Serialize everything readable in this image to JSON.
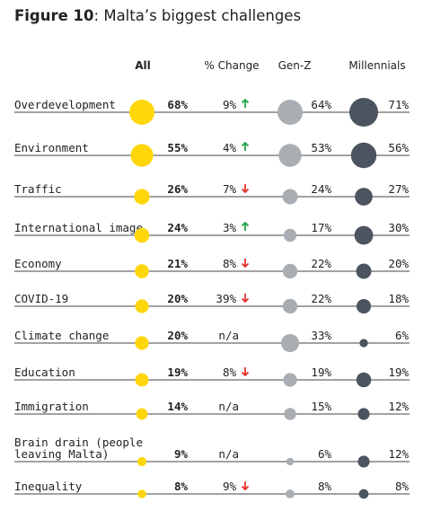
{
  "title": {
    "prefix": "Figure 10",
    "rest": ": Malta’s biggest challenges"
  },
  "chart_data": {
    "type": "table",
    "columns": [
      "All",
      "% Change",
      "Gen-Z",
      "Millennials"
    ],
    "series": [
      {
        "name": "All",
        "color": "#FFD60A",
        "values": [
          68,
          55,
          26,
          24,
          21,
          20,
          20,
          19,
          14,
          9,
          8
        ]
      },
      {
        "name": "Gen-Z",
        "color": "#A9AEB3",
        "values": [
          64,
          53,
          24,
          17,
          22,
          22,
          33,
          19,
          15,
          6,
          8
        ]
      },
      {
        "name": "Millennials",
        "color": "#4B545F",
        "values": [
          71,
          56,
          27,
          30,
          20,
          18,
          6,
          19,
          12,
          12,
          8
        ]
      }
    ],
    "rows": [
      {
        "label": [
          "Overdevelopment"
        ],
        "all": "68%",
        "change": "9%",
        "dir": "up",
        "genz": "64%",
        "mill": "71%"
      },
      {
        "label": [
          "Environment"
        ],
        "all": "55%",
        "change": "4%",
        "dir": "up",
        "genz": "53%",
        "mill": "56%"
      },
      {
        "label": [
          "Traffic"
        ],
        "all": "26%",
        "change": "7%",
        "dir": "down",
        "genz": "24%",
        "mill": "27%"
      },
      {
        "label": [
          "International image"
        ],
        "all": "24%",
        "change": "3%",
        "dir": "up",
        "genz": "17%",
        "mill": "30%"
      },
      {
        "label": [
          "Economy"
        ],
        "all": "21%",
        "change": "8%",
        "dir": "down",
        "genz": "22%",
        "mill": "20%"
      },
      {
        "label": [
          "COVID-19"
        ],
        "all": "20%",
        "change": "39%",
        "dir": "down",
        "genz": "22%",
        "mill": "18%"
      },
      {
        "label": [
          "Climate change"
        ],
        "all": "20%",
        "change": "n/a",
        "dir": "none",
        "genz": "33%",
        "mill": "6%"
      },
      {
        "label": [
          "Education"
        ],
        "all": "19%",
        "change": "8%",
        "dir": "down",
        "genz": "19%",
        "mill": "19%"
      },
      {
        "label": [
          "Immigration"
        ],
        "all": "14%",
        "change": "n/a",
        "dir": "none",
        "genz": "15%",
        "mill": "12%"
      },
      {
        "label": [
          "Brain drain (people",
          "leaving Malta)"
        ],
        "all": "9%",
        "change": "n/a",
        "dir": "none",
        "genz": "6%",
        "mill": "12%"
      },
      {
        "label": [
          "Inequality"
        ],
        "all": "8%",
        "change": "9%",
        "dir": "down",
        "genz": "8%",
        "mill": "8%"
      }
    ],
    "arrow_colors": {
      "up": "#1FA44A",
      "down": "#E5302A"
    }
  }
}
